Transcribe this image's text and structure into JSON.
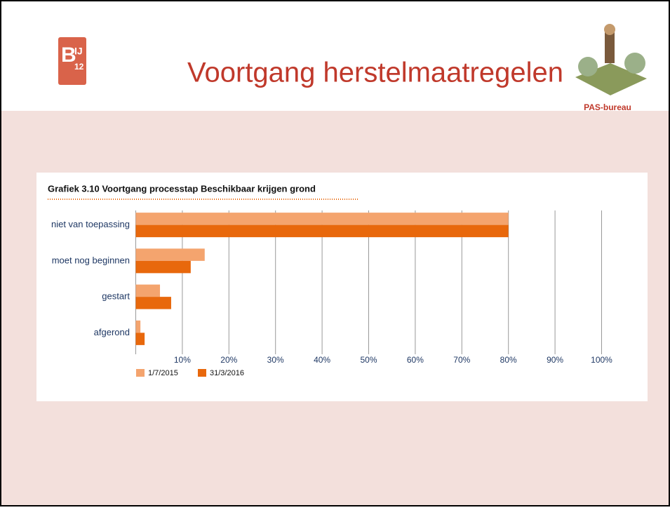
{
  "slide_title": "Voortgang herstelmaatregelen",
  "logo": [
    "B",
    "IJ",
    "12"
  ],
  "partner_logo": "PAS-bureau",
  "chart_data": {
    "type": "bar",
    "orientation": "horizontal",
    "title": "Grafiek 3.10  Voortgang processtap Beschikbaar krijgen grond",
    "categories": [
      "niet van toepassing",
      "moet nog beginnen",
      "gestart",
      "afgerond"
    ],
    "series": [
      {
        "name": "1/7/2015",
        "color": "#f4a46e",
        "values": [
          80,
          14.8,
          5.2,
          1.0
        ]
      },
      {
        "name": "31/3/2016",
        "color": "#e8680c",
        "values": [
          80,
          11.8,
          7.6,
          1.9
        ]
      }
    ],
    "xlim": [
      0,
      100
    ],
    "xticks": [
      {
        "value": 10,
        "label": "10%"
      },
      {
        "value": 20,
        "label": "20%"
      },
      {
        "value": 30,
        "label": "30%"
      },
      {
        "value": 40,
        "label": "40%"
      },
      {
        "value": 50,
        "label": "50%"
      },
      {
        "value": 60,
        "label": "60%"
      },
      {
        "value": 70,
        "label": "70%"
      },
      {
        "value": 80,
        "label": "80%"
      },
      {
        "value": 90,
        "label": "90%"
      },
      {
        "value": 100,
        "label": "100%"
      }
    ],
    "grid": true,
    "legend": "bottom-left"
  }
}
